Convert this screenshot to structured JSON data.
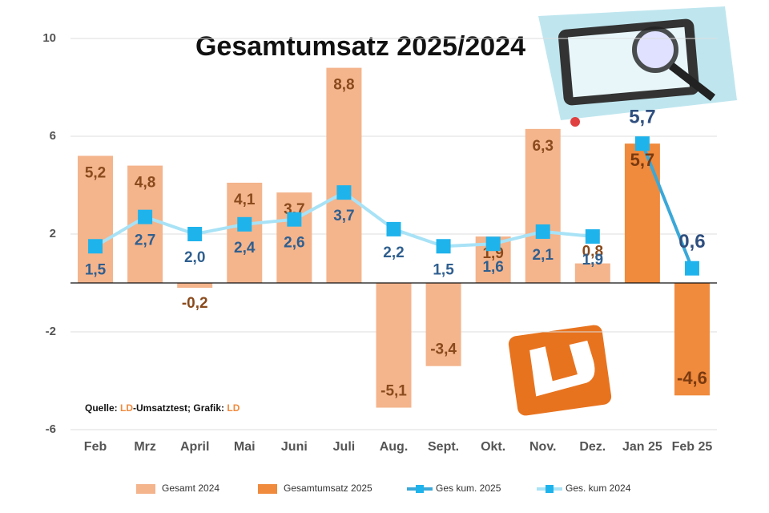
{
  "chart_data": {
    "type": "bar",
    "title": "Gesamtumsatz 2025/2024",
    "categories": [
      "Feb",
      "Mrz",
      "April",
      "Mai",
      "Juni",
      "Juli",
      "Aug.",
      "Sept.",
      "Okt.",
      "Nov.",
      "Dez.",
      "Jan 25",
      "Feb 25"
    ],
    "series": [
      {
        "name": "Gesamt 2024",
        "type": "bar",
        "color": "#f4b48c",
        "values": [
          5.2,
          4.8,
          -0.2,
          4.1,
          3.7,
          8.8,
          -5.1,
          -3.4,
          1.9,
          6.3,
          0.8,
          null,
          null
        ],
        "value_labels": [
          "5,2",
          "4,8",
          "-0,2",
          "4,1",
          "3,7",
          "8,8",
          "-5,1",
          "-3,4",
          "1,9",
          "6,3",
          "0,8",
          null,
          null
        ]
      },
      {
        "name": "Gesamtumsatz 2025",
        "type": "bar",
        "color": "#f08a3c",
        "values": [
          null,
          null,
          null,
          null,
          null,
          null,
          null,
          null,
          null,
          null,
          null,
          5.7,
          -4.6
        ],
        "value_labels": [
          null,
          null,
          null,
          null,
          null,
          null,
          null,
          null,
          null,
          null,
          null,
          "5,7",
          "-4,6"
        ]
      },
      {
        "name": "Ges kum. 2025",
        "type": "line",
        "color": "#3aa8d8",
        "marker_color": "#1fb3ec",
        "values": [
          null,
          null,
          null,
          null,
          null,
          null,
          null,
          null,
          null,
          null,
          null,
          5.7,
          0.6
        ],
        "value_labels": [
          null,
          null,
          null,
          null,
          null,
          null,
          null,
          null,
          null,
          null,
          null,
          "5,7",
          "0,6"
        ]
      },
      {
        "name": "Ges. kum 2024",
        "type": "line",
        "color": "#a8e2f6",
        "marker_color": "#1fb3ec",
        "values": [
          1.5,
          2.7,
          2.0,
          2.4,
          2.6,
          3.7,
          2.2,
          1.5,
          1.6,
          2.1,
          1.9,
          null,
          null
        ],
        "value_labels": [
          "1,5",
          "2,7",
          "2,0",
          "2,4",
          "2,6",
          "3,7",
          "2,2",
          "1,5",
          "1,6",
          "2,1",
          "1,9",
          null,
          null
        ]
      }
    ],
    "ylim": [
      -6,
      10
    ],
    "yticks": [
      10,
      6,
      2,
      -2,
      -6
    ],
    "grid": true,
    "source": [
      "Quelle: ",
      "LD",
      "-Umsatztest; Grafik: ",
      "LD"
    ]
  }
}
